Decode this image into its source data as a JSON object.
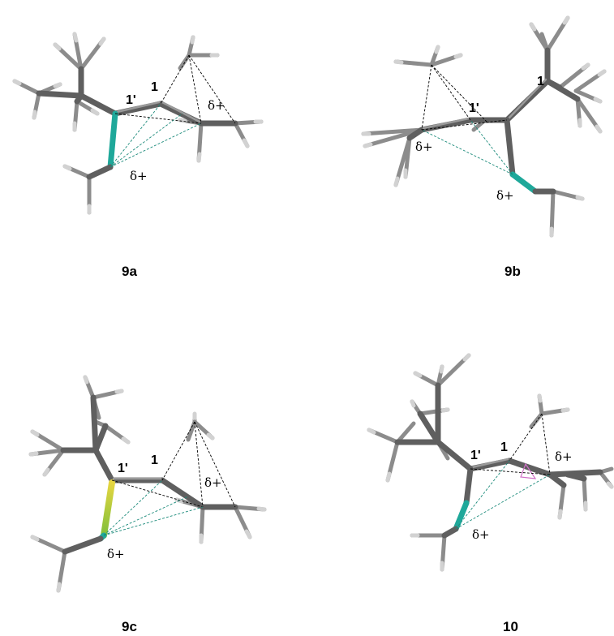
{
  "panels": [
    {
      "id": "9a",
      "label": "9a",
      "atom_labels": [
        "1'",
        "1"
      ],
      "charge_labels": [
        "δ+",
        "δ+"
      ]
    },
    {
      "id": "9b",
      "label": "9b",
      "atom_labels": [
        "1'",
        "1"
      ],
      "charge_labels": [
        "δ+",
        "δ+"
      ]
    },
    {
      "id": "9c",
      "label": "9c",
      "atom_labels": [
        "1'",
        "1"
      ],
      "charge_labels": [
        "δ+",
        "δ+"
      ]
    },
    {
      "id": "10",
      "label": "10",
      "atom_labels": [
        "1'",
        "1"
      ],
      "charge_labels": [
        "δ+",
        "δ+"
      ]
    }
  ],
  "colors": {
    "carbon": "#5f5f5f",
    "hydrogen": "#d2d2d2",
    "heteroatom": "#1fa89a",
    "heteroatom_alt": "#b8c43a",
    "highlight_ring": "#d070c8"
  }
}
